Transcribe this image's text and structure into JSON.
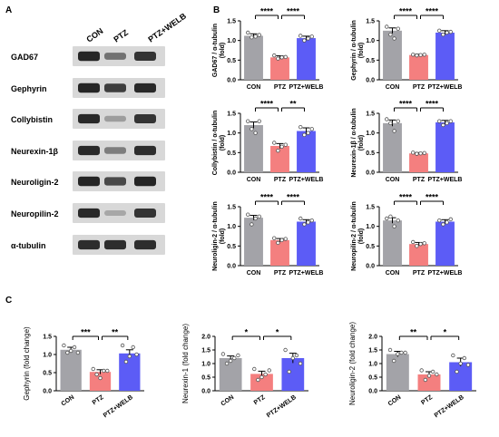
{
  "panels": {
    "a": "A",
    "b": "B",
    "c": "C"
  },
  "blot": {
    "lanes": [
      "CON",
      "PTZ",
      "PTZ+WELB"
    ],
    "rows": [
      {
        "label": "GAD67",
        "intensities": [
          0.92,
          0.55,
          0.85
        ]
      },
      {
        "label": "Gephyrin",
        "intensities": [
          0.92,
          0.8,
          0.9
        ]
      },
      {
        "label": "Collybistin",
        "intensities": [
          0.9,
          0.35,
          0.85
        ]
      },
      {
        "label": "Neurexin-1β",
        "intensities": [
          0.9,
          0.5,
          0.88
        ]
      },
      {
        "label": "Neuroligin-2",
        "intensities": [
          0.92,
          0.75,
          0.92
        ]
      },
      {
        "label": "Neuropilin-2",
        "intensities": [
          0.9,
          0.3,
          0.85
        ]
      },
      {
        "label": "α-tubulin",
        "intensities": [
          0.88,
          0.88,
          0.88
        ]
      }
    ]
  },
  "colors": {
    "CON": "#a3a3a8",
    "PTZ": "#f47f7f",
    "PTZ+WELB": "#5c5cf6"
  },
  "chart_data": [
    {
      "panel": "B",
      "type": "bar",
      "categories": [
        "CON",
        "PTZ",
        "PTZ+WELB"
      ],
      "values": [
        1.12,
        0.57,
        1.06
      ],
      "errors": [
        0.05,
        0.04,
        0.05
      ],
      "points": [
        [
          1.2,
          1.08,
          1.1,
          1.14
        ],
        [
          0.62,
          0.54,
          0.57,
          0.58
        ],
        [
          1.12,
          1.0,
          1.05,
          1.1
        ]
      ],
      "ylabel": "GAD67 / α-tubulin (fold)",
      "ylim": [
        0,
        1.5
      ],
      "yticks": [
        0.0,
        0.5,
        1.0,
        1.5
      ],
      "significance": [
        {
          "from": 0,
          "to": 1,
          "label": "****"
        },
        {
          "from": 1,
          "to": 2,
          "label": "****"
        }
      ]
    },
    {
      "panel": "B",
      "type": "bar",
      "categories": [
        "CON",
        "PTZ",
        "PTZ+WELB"
      ],
      "values": [
        1.25,
        0.63,
        1.2
      ],
      "errors": [
        0.07,
        0.02,
        0.05
      ],
      "points": [
        [
          1.35,
          1.15,
          1.05,
          1.3
        ],
        [
          0.64,
          0.62,
          0.63,
          0.64
        ],
        [
          1.25,
          1.15,
          1.2,
          1.22
        ]
      ],
      "ylabel": "Gephyrin / α-tubulin (fold)",
      "ylim": [
        0,
        1.5
      ],
      "yticks": [
        0.0,
        0.5,
        1.0,
        1.5
      ],
      "significance": [
        {
          "from": 0,
          "to": 1,
          "label": "****"
        },
        {
          "from": 1,
          "to": 2,
          "label": "****"
        }
      ]
    },
    {
      "panel": "B",
      "type": "bar",
      "categories": [
        "CON",
        "PTZ",
        "PTZ+WELB"
      ],
      "values": [
        1.2,
        0.67,
        1.05
      ],
      "errors": [
        0.08,
        0.06,
        0.08
      ],
      "points": [
        [
          1.3,
          1.1,
          1.0,
          1.3
        ],
        [
          0.75,
          0.55,
          0.65,
          0.7
        ],
        [
          1.15,
          0.95,
          1.0,
          1.1
        ]
      ],
      "ylabel": "Collybistin / α-tubulin (fold)",
      "ylim": [
        0,
        1.5
      ],
      "yticks": [
        0.0,
        0.5,
        1.0,
        1.5
      ],
      "significance": [
        {
          "from": 0,
          "to": 1,
          "label": "****"
        },
        {
          "from": 1,
          "to": 2,
          "label": "**"
        }
      ]
    },
    {
      "panel": "B",
      "type": "bar",
      "categories": [
        "CON",
        "PTZ",
        "PTZ+WELB"
      ],
      "values": [
        1.25,
        0.48,
        1.27
      ],
      "errors": [
        0.08,
        0.02,
        0.05
      ],
      "points": [
        [
          1.35,
          1.25,
          1.05,
          1.3
        ],
        [
          0.5,
          0.47,
          0.48,
          0.49
        ],
        [
          1.3,
          1.2,
          1.25,
          1.3
        ]
      ],
      "ylabel": "Neurexin-1β / α-tubulin (fold)",
      "ylim": [
        0,
        1.5
      ],
      "yticks": [
        0.0,
        0.5,
        1.0,
        1.5
      ],
      "significance": [
        {
          "from": 0,
          "to": 1,
          "label": "****"
        },
        {
          "from": 1,
          "to": 2,
          "label": "****"
        }
      ]
    },
    {
      "panel": "B",
      "type": "bar",
      "categories": [
        "CON",
        "PTZ",
        "PTZ+WELB"
      ],
      "values": [
        1.22,
        0.65,
        1.12
      ],
      "errors": [
        0.06,
        0.04,
        0.05
      ],
      "points": [
        [
          1.3,
          1.05,
          1.2,
          1.25
        ],
        [
          0.7,
          0.58,
          0.65,
          0.68
        ],
        [
          1.2,
          1.05,
          1.1,
          1.15
        ]
      ],
      "ylabel": "Neuroligin-2 / α-tubulin (fold)",
      "ylim": [
        0,
        1.5
      ],
      "yticks": [
        0.0,
        0.5,
        1.0,
        1.5
      ],
      "significance": [
        {
          "from": 0,
          "to": 1,
          "label": "****"
        },
        {
          "from": 1,
          "to": 2,
          "label": "****"
        }
      ]
    },
    {
      "panel": "B",
      "type": "bar",
      "categories": [
        "CON",
        "PTZ",
        "PTZ+WELB"
      ],
      "values": [
        1.15,
        0.55,
        1.12
      ],
      "errors": [
        0.07,
        0.04,
        0.05
      ],
      "points": [
        [
          1.2,
          1.25,
          1.0,
          1.15
        ],
        [
          0.6,
          0.5,
          0.55,
          0.57
        ],
        [
          1.15,
          1.05,
          1.1,
          1.18
        ]
      ],
      "ylabel": "Neuropilin-2 / α-tubulin (fold)",
      "ylim": [
        0,
        1.5
      ],
      "yticks": [
        0.0,
        0.5,
        1.0,
        1.5
      ],
      "significance": [
        {
          "from": 0,
          "to": 1,
          "label": "****"
        },
        {
          "from": 1,
          "to": 2,
          "label": "****"
        }
      ]
    },
    {
      "panel": "C",
      "type": "bar",
      "categories": [
        "CON",
        "PTZ",
        "PTZ+WELB"
      ],
      "values": [
        1.13,
        0.52,
        1.03
      ],
      "errors": [
        0.07,
        0.06,
        0.1
      ],
      "points": [
        [
          1.25,
          1.05,
          1.1,
          1.2,
          1.05
        ],
        [
          0.6,
          0.45,
          0.35,
          0.55,
          0.55
        ],
        [
          1.25,
          0.8,
          0.95,
          1.2,
          1.0
        ]
      ],
      "ylabel": "Gephyrin (fold change)",
      "ylim": [
        0,
        1.5
      ],
      "yticks": [
        0.0,
        0.5,
        1.0,
        1.5
      ],
      "significance": [
        {
          "from": 0,
          "to": 1,
          "label": "***"
        },
        {
          "from": 1,
          "to": 2,
          "label": "**"
        }
      ]
    },
    {
      "panel": "C",
      "type": "bar",
      "categories": [
        "CON",
        "PTZ",
        "PTZ+WELB"
      ],
      "values": [
        1.2,
        0.62,
        1.2
      ],
      "errors": [
        0.08,
        0.1,
        0.18
      ],
      "points": [
        [
          1.35,
          1.0,
          1.1,
          1.2,
          1.3
        ],
        [
          0.8,
          0.4,
          0.5,
          0.6,
          0.75
        ],
        [
          1.5,
          0.7,
          1.2,
          1.3,
          1.0
        ]
      ],
      "ylabel": "Neurexin-1 (fold change)",
      "ylim": [
        0,
        2.0
      ],
      "yticks": [
        0.0,
        0.5,
        1.0,
        1.5,
        2.0
      ],
      "significance": [
        {
          "from": 0,
          "to": 1,
          "label": "*"
        },
        {
          "from": 1,
          "to": 2,
          "label": "*"
        }
      ]
    },
    {
      "panel": "C",
      "type": "bar",
      "categories": [
        "CON",
        "PTZ",
        "PTZ+WELB"
      ],
      "values": [
        1.35,
        0.6,
        1.05
      ],
      "errors": [
        0.1,
        0.1,
        0.15
      ],
      "points": [
        [
          1.5,
          1.1,
          1.35,
          1.4,
          1.4
        ],
        [
          0.75,
          0.4,
          0.55,
          0.7,
          0.6
        ],
        [
          1.3,
          0.7,
          1.0,
          1.2,
          0.95
        ]
      ],
      "ylabel": "Neuroligin-2 (fold change)",
      "ylim": [
        0,
        2.0
      ],
      "yticks": [
        0.0,
        0.5,
        1.0,
        1.5,
        2.0
      ],
      "significance": [
        {
          "from": 0,
          "to": 1,
          "label": "**"
        },
        {
          "from": 1,
          "to": 2,
          "label": "*"
        }
      ]
    }
  ]
}
